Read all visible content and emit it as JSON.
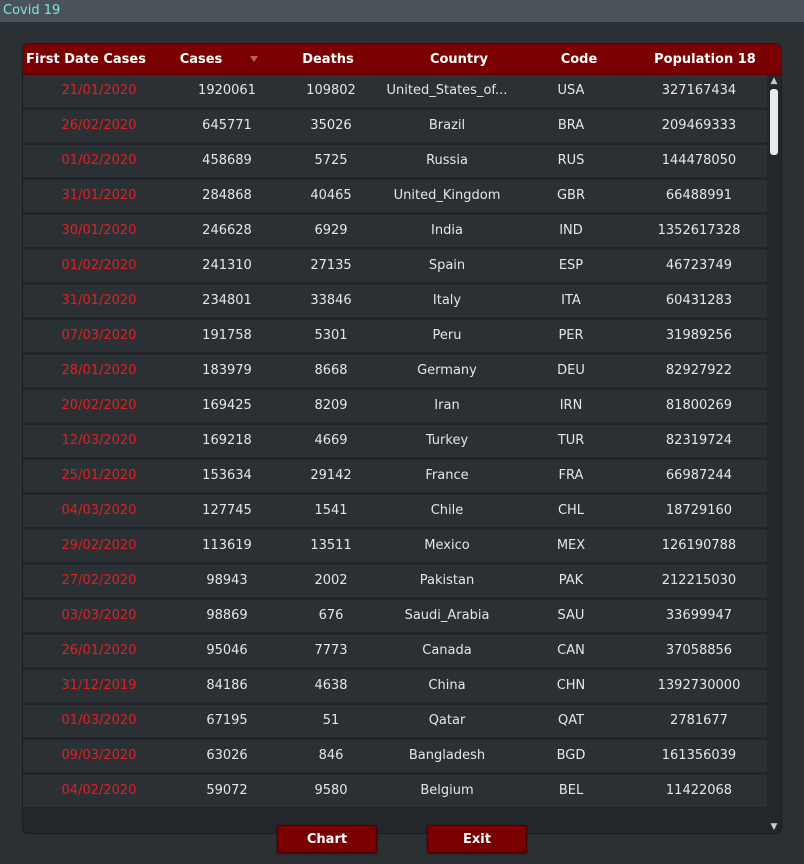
{
  "window": {
    "title": "Covid 19"
  },
  "table": {
    "columns": [
      "First Date Cases",
      "Cases",
      "Deaths",
      "Country",
      "Code",
      "Population 18"
    ],
    "rows": [
      [
        "21/01/2020",
        "1920061",
        "109802",
        "United_States_of...",
        "USA",
        "327167434"
      ],
      [
        "26/02/2020",
        "645771",
        "35026",
        "Brazil",
        "BRA",
        "209469333"
      ],
      [
        "01/02/2020",
        "458689",
        "5725",
        "Russia",
        "RUS",
        "144478050"
      ],
      [
        "31/01/2020",
        "284868",
        "40465",
        "United_Kingdom",
        "GBR",
        "66488991"
      ],
      [
        "30/01/2020",
        "246628",
        "6929",
        "India",
        "IND",
        "1352617328"
      ],
      [
        "01/02/2020",
        "241310",
        "27135",
        "Spain",
        "ESP",
        "46723749"
      ],
      [
        "31/01/2020",
        "234801",
        "33846",
        "Italy",
        "ITA",
        "60431283"
      ],
      [
        "07/03/2020",
        "191758",
        "5301",
        "Peru",
        "PER",
        "31989256"
      ],
      [
        "28/01/2020",
        "183979",
        "8668",
        "Germany",
        "DEU",
        "82927922"
      ],
      [
        "20/02/2020",
        "169425",
        "8209",
        "Iran",
        "IRN",
        "81800269"
      ],
      [
        "12/03/2020",
        "169218",
        "4669",
        "Turkey",
        "TUR",
        "82319724"
      ],
      [
        "25/01/2020",
        "153634",
        "29142",
        "France",
        "FRA",
        "66987244"
      ],
      [
        "04/03/2020",
        "127745",
        "1541",
        "Chile",
        "CHL",
        "18729160"
      ],
      [
        "29/02/2020",
        "113619",
        "13511",
        "Mexico",
        "MEX",
        "126190788"
      ],
      [
        "27/02/2020",
        "98943",
        "2002",
        "Pakistan",
        "PAK",
        "212215030"
      ],
      [
        "03/03/2020",
        "98869",
        "676",
        "Saudi_Arabia",
        "SAU",
        "33699947"
      ],
      [
        "26/01/2020",
        "95046",
        "7773",
        "Canada",
        "CAN",
        "37058856"
      ],
      [
        "31/12/2019",
        "84186",
        "4638",
        "China",
        "CHN",
        "1392730000"
      ],
      [
        "01/03/2020",
        "67195",
        "51",
        "Qatar",
        "QAT",
        "2781677"
      ],
      [
        "09/03/2020",
        "63026",
        "846",
        "Bangladesh",
        "BGD",
        "161356039"
      ],
      [
        "04/02/2020",
        "59072",
        "9580",
        "Belgium",
        "BEL",
        "11422068"
      ]
    ]
  },
  "buttons": {
    "chart": "Chart",
    "exit": "Exit"
  },
  "icons": {
    "sort": "sort-descending-icon",
    "scroll_up": "scroll-up-icon",
    "scroll_down": "scroll-down-icon"
  },
  "colors": {
    "header": "#7a0000",
    "date_text": "#e02020",
    "title_text": "#7fe0e6"
  }
}
